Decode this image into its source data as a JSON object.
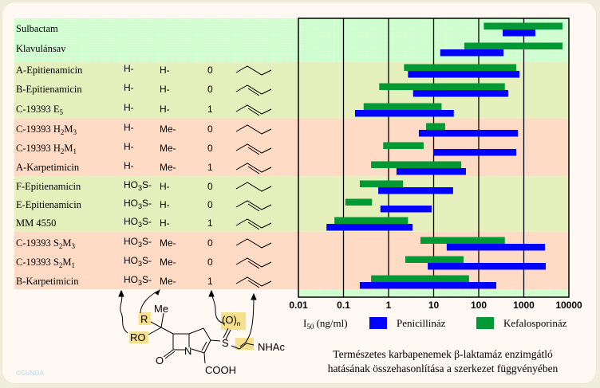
{
  "colors": {
    "penicillinase": "#0000ff",
    "cephalosporinase": "#009933",
    "band_green": "#ccffcc",
    "band_yellow": "#e6f0bc",
    "band_salmon": "#ffdac4"
  },
  "compounds": [
    {
      "name": "Sulbactam",
      "sub": "",
      "mid": "",
      "sub2": "",
      "r1": "",
      "r1sub": "",
      "r1end": "",
      "r2": "",
      "n": "",
      "chain": ""
    },
    {
      "name": "Klavulánsav",
      "sub": "",
      "mid": "",
      "sub2": "",
      "r1": "",
      "r1sub": "",
      "r1end": "",
      "r2": "",
      "n": "",
      "chain": ""
    },
    {
      "name": "A-Epitienamicin",
      "sub": "",
      "mid": "",
      "sub2": "",
      "r1": "H-",
      "r1sub": "",
      "r1end": "",
      "r2": "H-",
      "n": "0",
      "chain": "single"
    },
    {
      "name": "B-Epitienamicin",
      "sub": "",
      "mid": "",
      "sub2": "",
      "r1": "H-",
      "r1sub": "",
      "r1end": "",
      "r2": "H-",
      "n": "0",
      "chain": "double"
    },
    {
      "name": "C-19393 E",
      "sub": "5",
      "mid": "",
      "sub2": "",
      "r1": "H-",
      "r1sub": "",
      "r1end": "",
      "r2": "H-",
      "n": "1",
      "chain": "double"
    },
    {
      "name": "C-19393 H",
      "sub": "2",
      "mid": "M",
      "sub2": "3",
      "r1": "H-",
      "r1sub": "",
      "r1end": "",
      "r2": "Me-",
      "n": "0",
      "chain": "single"
    },
    {
      "name": "C-19393 H",
      "sub": "2",
      "mid": "M",
      "sub2": "1",
      "r1": "H-",
      "r1sub": "",
      "r1end": "",
      "r2": "Me-",
      "n": "0",
      "chain": "double"
    },
    {
      "name": "A-Karpetimicin",
      "sub": "",
      "mid": "",
      "sub2": "",
      "r1": "H-",
      "r1sub": "",
      "r1end": "",
      "r2": "Me-",
      "n": "1",
      "chain": "double"
    },
    {
      "name": "F-Epitienamicin",
      "sub": "",
      "mid": "",
      "sub2": "",
      "r1": "HO",
      "r1sub": "3",
      "r1end": "S-",
      "r2": "H-",
      "n": "0",
      "chain": "single"
    },
    {
      "name": "E-Epitienamicin",
      "sub": "",
      "mid": "",
      "sub2": "",
      "r1": "HO",
      "r1sub": "3",
      "r1end": "S-",
      "r2": "H-",
      "n": "0",
      "chain": "double"
    },
    {
      "name": "MM 4550",
      "sub": "",
      "mid": "",
      "sub2": "",
      "r1": "HO",
      "r1sub": "3",
      "r1end": "S-",
      "r2": "H-",
      "n": "1",
      "chain": "double"
    },
    {
      "name": "C-19393 S",
      "sub": "2",
      "mid": "M",
      "sub2": "3",
      "r1": "HO",
      "r1sub": "3",
      "r1end": "S-",
      "r2": "Me-",
      "n": "0",
      "chain": "single"
    },
    {
      "name": "C-19393 S",
      "sub": "2",
      "mid": "M",
      "sub2": "1",
      "r1": "HO",
      "r1sub": "3",
      "r1end": "S-",
      "r2": "Me-",
      "n": "0",
      "chain": "double"
    },
    {
      "name": "B-Karpetimicin",
      "sub": "",
      "mid": "",
      "sub2": "",
      "r1": "HO",
      "r1sub": "3",
      "r1end": "S-",
      "r2": "Me-",
      "n": "1",
      "chain": "double"
    }
  ],
  "chart_data": {
    "type": "bar",
    "orientation": "horizontal-floating-range",
    "xscale": "log",
    "xlim": [
      0.01,
      10000
    ],
    "xticks": [
      "0.01",
      "0.1",
      "1",
      "10",
      "100",
      "1000",
      "10000"
    ],
    "xlabel_main": "I",
    "xlabel_sub": "50",
    "xlabel_unit": " (ng/ml)",
    "grid": true,
    "legend_position": "bottom",
    "categories": [
      "Sulbactam",
      "Klavulánsav",
      "A-Epitienamicin",
      "B-Epitienamicin",
      "C-19393 E5",
      "C-19393 H2M3",
      "C-19393 H2M1",
      "A-Karpetimicin",
      "F-Epitienamicin",
      "E-Epitienamicin",
      "MM 4550",
      "C-19393 S2M3",
      "C-19393 S2M1",
      "B-Karpetimicin"
    ],
    "series": [
      {
        "name": "Kefalosporináz",
        "color": "#009933",
        "ranges": [
          [
            130,
            7200
          ],
          [
            48,
            7200
          ],
          [
            2.2,
            680
          ],
          [
            0.62,
            380
          ],
          [
            0.28,
            15
          ],
          [
            6.8,
            18
          ],
          [
            0.76,
            6
          ],
          [
            0.41,
            41
          ],
          [
            0.23,
            2.1
          ],
          [
            0.11,
            0.43
          ],
          [
            0.063,
            2.7
          ],
          [
            5.1,
            380
          ],
          [
            2.35,
            46
          ],
          [
            0.41,
            61
          ]
        ]
      },
      {
        "name": "Penicillináz",
        "color": "#0000ff",
        "ranges": [
          [
            340,
            1800
          ],
          [
            14,
            355
          ],
          [
            2.7,
            800
          ],
          [
            3.5,
            450
          ],
          [
            0.18,
            28
          ],
          [
            4.7,
            740
          ],
          [
            9.8,
            680
          ],
          [
            1.5,
            52
          ],
          [
            0.59,
            27
          ],
          [
            0.66,
            9
          ],
          [
            0.042,
            3.4
          ],
          [
            19.5,
            2950
          ],
          [
            7.4,
            3070
          ],
          [
            0.23,
            245
          ]
        ]
      }
    ],
    "legend": [
      "Penicillináz",
      "Kefalosporináz"
    ]
  },
  "caption": {
    "line1": "Természetes karbapenemek β-laktamáz enzimgátló",
    "line2": "hatásának összehasonlítása a szerkezet függvényében"
  },
  "structure": {
    "me": "Me",
    "r": "R",
    "ro": "RO",
    "on": "(O)",
    "on_sub": "n",
    "s": "S",
    "n": "N",
    "o": "O",
    "nhac": "NHAc",
    "cooh": "COOH"
  },
  "watermark": "©GUNDA"
}
